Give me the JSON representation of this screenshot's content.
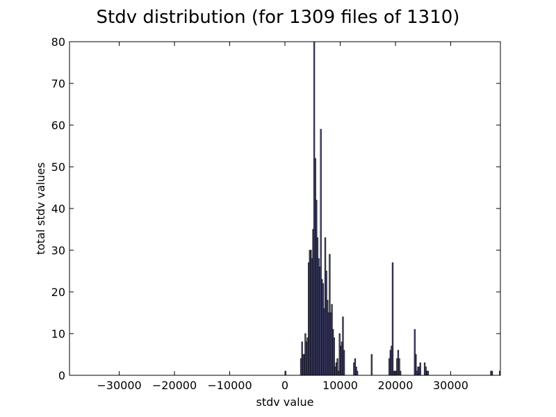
{
  "chart_data": {
    "type": "bar",
    "title": "Stdv distribution (for 1309 files of 1310)",
    "xlabel": "stdv value",
    "ylabel": "total stdv values",
    "xlim": [
      -39000,
      39000
    ],
    "ylim": [
      0,
      80
    ],
    "xticks": [
      -30000,
      -20000,
      -10000,
      0,
      10000,
      20000,
      30000
    ],
    "yticks": [
      0,
      10,
      20,
      30,
      40,
      50,
      60,
      70,
      80
    ],
    "grid": false,
    "bar_width": 200,
    "x": [
      0,
      2800,
      3000,
      3200,
      3400,
      3600,
      3800,
      4000,
      4200,
      4400,
      4600,
      4800,
      5000,
      5200,
      5400,
      5600,
      5800,
      6000,
      6200,
      6400,
      6600,
      6800,
      7000,
      7200,
      7400,
      7600,
      7800,
      8000,
      8200,
      8400,
      8600,
      8800,
      9000,
      9200,
      9400,
      9600,
      9800,
      10000,
      10200,
      10400,
      10600,
      12400,
      12600,
      12800,
      13000,
      15600,
      18800,
      19000,
      19200,
      19400,
      19600,
      19800,
      20000,
      20200,
      20400,
      20600,
      20800,
      23400,
      23600,
      23800,
      24000,
      24200,
      24400,
      25200,
      25400,
      25600,
      25800,
      37200,
      37400,
      38800
    ],
    "values": [
      1,
      4,
      8,
      5,
      5,
      10,
      8,
      9,
      27,
      30,
      30,
      28,
      35,
      80,
      52,
      42,
      33,
      28,
      26,
      59,
      23,
      22,
      16,
      33,
      25,
      18,
      15,
      29,
      15,
      17,
      11,
      9,
      2,
      3,
      4,
      1,
      10,
      7,
      8,
      14,
      6,
      3,
      4,
      2,
      1,
      5,
      4,
      6,
      7,
      27,
      1,
      1,
      1,
      4,
      6,
      4,
      1,
      11,
      5,
      1,
      2,
      2,
      3,
      3,
      2,
      1,
      1,
      1,
      1,
      1
    ]
  }
}
